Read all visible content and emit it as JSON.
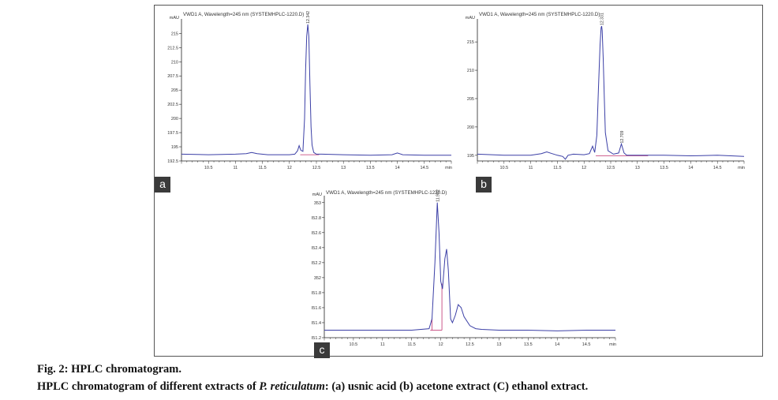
{
  "figure": {
    "caption_title": "Fig. 2: HPLC chromatogram.",
    "caption_line2_before": "HPLC chromatogram of different extracts of ",
    "caption_species": "P. reticulatum",
    "caption_line2_after": ": (a) usnic acid (b) acetone extract (C) ethanol extract."
  },
  "colors": {
    "trace": "#3b3fa6",
    "baseline": "#c0306e",
    "axis": "#222222",
    "text": "#333333"
  },
  "chart_data": [
    {
      "type": "line",
      "panel_label": "a",
      "title": "VWD1 A, Wavelength=245 nm (SYSTEMHPLC-1220.D)",
      "ylabel": "mAU",
      "xlabel": "min",
      "xlim": [
        10.0,
        15.0
      ],
      "ylim": [
        192.5,
        217.0
      ],
      "xticks": [
        "10.5",
        "11",
        "11.5",
        "12",
        "12.5",
        "13",
        "13.5",
        "14",
        "14.5"
      ],
      "yticks": [
        "192.5",
        "195",
        "197.5",
        "200",
        "202.5",
        "205",
        "207.5",
        "210",
        "212.5",
        "215"
      ],
      "peak_labels": [
        {
          "rt": 12.342,
          "label": "12.342"
        }
      ],
      "series": [
        {
          "x": [
            10.0,
            10.5,
            11.0,
            11.2,
            11.3,
            11.4,
            11.6,
            12.0,
            12.1,
            12.15,
            12.18,
            12.21,
            12.25,
            12.28,
            12.3,
            12.32,
            12.34,
            12.36,
            12.38,
            12.4,
            12.42,
            12.45,
            12.5,
            12.6,
            13.0,
            13.5,
            13.9,
            14.0,
            14.1,
            14.5,
            15.0
          ],
          "y": [
            193.7,
            193.6,
            193.7,
            193.8,
            194.0,
            193.8,
            193.6,
            193.6,
            193.7,
            194.3,
            195.2,
            194.4,
            194.2,
            200.0,
            208.5,
            214.5,
            216.6,
            214.5,
            206.0,
            198.5,
            195.3,
            194.0,
            193.7,
            193.7,
            193.6,
            193.5,
            193.6,
            193.9,
            193.6,
            193.5,
            193.5
          ]
        }
      ],
      "baselines": [
        {
          "x": [
            12.2,
            12.55
          ],
          "y": [
            193.6,
            193.6
          ]
        }
      ]
    },
    {
      "type": "line",
      "panel_label": "b",
      "title": "VWD1 A, Wavelength=245 nm (SYSTEMHPLC-1220.D)",
      "ylabel": "mAU",
      "xlabel": "min",
      "xlim": [
        10.0,
        15.0
      ],
      "ylim": [
        194.0,
        218.5
      ],
      "xticks": [
        "10.5",
        "11",
        "11.5",
        "12",
        "12.5",
        "13",
        "13.5",
        "14",
        "14.5"
      ],
      "yticks": [
        "195",
        "200",
        "205",
        "210",
        "215"
      ],
      "peak_labels": [
        {
          "rt": 12.331,
          "label": "12.331"
        },
        {
          "rt": 12.709,
          "label": "12.709"
        }
      ],
      "series": [
        {
          "x": [
            10.0,
            10.5,
            11.0,
            11.2,
            11.3,
            11.4,
            11.5,
            11.6,
            11.65,
            11.7,
            11.8,
            12.0,
            12.1,
            12.16,
            12.2,
            12.24,
            12.27,
            12.3,
            12.32,
            12.33,
            12.34,
            12.36,
            12.38,
            12.4,
            12.45,
            12.55,
            12.65,
            12.7,
            12.75,
            12.8,
            13.0,
            13.5,
            14.0,
            14.5,
            15.0
          ],
          "y": [
            195.2,
            195.0,
            195.0,
            195.3,
            195.6,
            195.3,
            195.0,
            194.8,
            194.3,
            195.0,
            195.2,
            195.1,
            195.3,
            196.6,
            195.5,
            198.5,
            207.0,
            214.5,
            217.5,
            217.8,
            217.0,
            212.0,
            205.0,
            199.0,
            195.8,
            195.2,
            195.4,
            197.0,
            195.4,
            195.0,
            195.0,
            195.0,
            194.9,
            195.0,
            194.8
          ]
        }
      ],
      "baselines": [
        {
          "x": [
            12.22,
            13.2
          ],
          "y": [
            194.9,
            194.9
          ]
        }
      ]
    },
    {
      "type": "line",
      "panel_label": "c",
      "title": "VWD1 A, Wavelength=245 nm (SYSTEMHPLC-1220.D)",
      "ylabel": "mAU",
      "xlabel": "min",
      "xlim": [
        10.0,
        15.0
      ],
      "ylim": [
        351.2,
        353.05
      ],
      "xticks": [
        "10.5",
        "11",
        "11.5",
        "12",
        "12.5",
        "13",
        "13.5",
        "14",
        "14.5"
      ],
      "yticks": [
        "351.2",
        "351.4",
        "351.6",
        "351.8",
        "352",
        "352.2",
        "352.4",
        "352.6",
        "352.8",
        "353"
      ],
      "peak_labels": [
        {
          "rt": 11.942,
          "label": "11.942"
        }
      ],
      "series": [
        {
          "x": [
            10.0,
            10.5,
            11.0,
            11.5,
            11.8,
            11.85,
            11.9,
            11.94,
            11.97,
            12.0,
            12.03,
            12.07,
            12.1,
            12.13,
            12.17,
            12.2,
            12.25,
            12.3,
            12.35,
            12.4,
            12.5,
            12.6,
            12.7,
            13.0,
            13.5,
            14.0,
            14.5,
            15.0
          ],
          "y": [
            351.3,
            351.3,
            351.3,
            351.3,
            351.32,
            351.45,
            352.2,
            353.0,
            352.6,
            351.95,
            351.85,
            352.25,
            352.38,
            352.1,
            351.45,
            351.4,
            351.5,
            351.64,
            351.6,
            351.48,
            351.36,
            351.32,
            351.31,
            351.3,
            351.3,
            351.29,
            351.3,
            351.3
          ]
        }
      ],
      "baselines": [
        {
          "x": [
            11.82,
            12.02
          ],
          "y": [
            351.3,
            351.3
          ]
        },
        {
          "x": [
            12.02,
            12.02
          ],
          "y": [
            351.3,
            351.92
          ]
        },
        {
          "x": [
            11.85,
            11.85
          ],
          "y": [
            351.3,
            351.46
          ]
        }
      ]
    }
  ]
}
